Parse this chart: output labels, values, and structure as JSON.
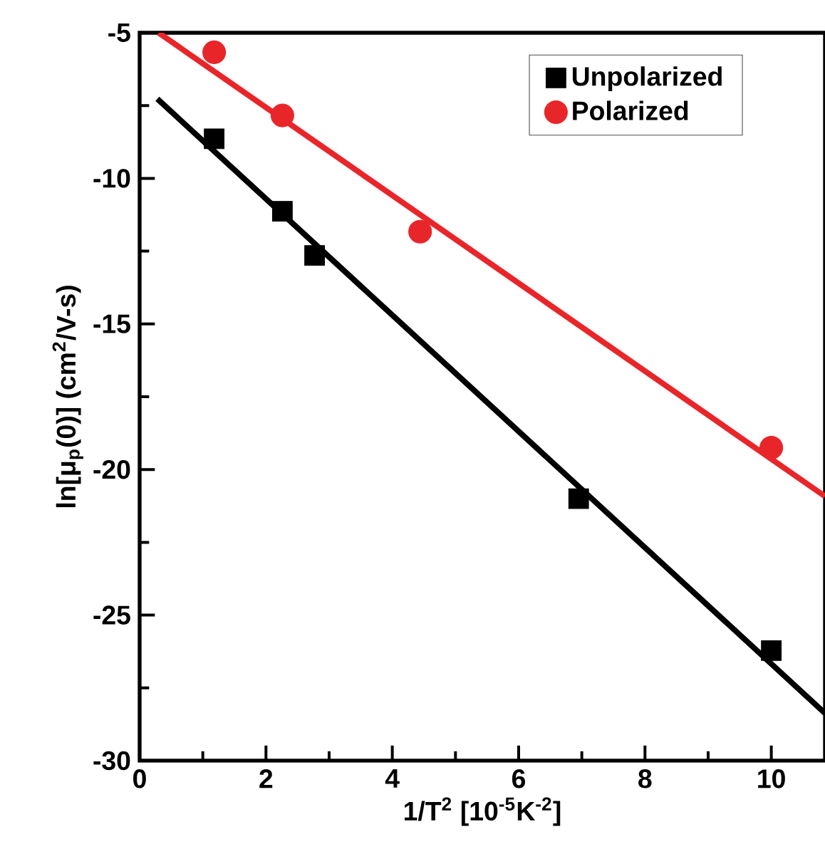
{
  "chart_data": {
    "type": "scatter",
    "xlabel": "1/T$^{2}$ [10$^{-5}$K$^{-2}$]",
    "ylabel": "ln[μ$_{p}$(0)] (cm$^{2}$/V-s)",
    "xlim": [
      0,
      10.85
    ],
    "ylim": [
      -30,
      -5
    ],
    "xticks": [
      0,
      2,
      4,
      6,
      8,
      10
    ],
    "yticks": [
      -30,
      -25,
      -20,
      -15,
      -10,
      -5
    ],
    "legend": "top right",
    "grid": false,
    "series": [
      {
        "name": "Unpolarized",
        "marker": "square",
        "color": "#000000",
        "x": [
          1.18,
          2.26,
          2.77,
          6.95,
          10.0
        ],
        "values": [
          -8.64,
          -11.13,
          -12.65,
          -21.0,
          -26.22
        ]
      },
      {
        "name": "Polarized",
        "marker": "circle",
        "color": "#e8262a",
        "x": [
          1.18,
          2.26,
          4.44,
          10.0
        ],
        "values": [
          -5.67,
          -7.84,
          -11.83,
          -19.25
        ]
      },
      {
        "type": "line",
        "marker": "none",
        "line_style": "solid",
        "color": "#000000",
        "x": [
          0.28,
          10.85
        ],
        "values": [
          -7.27,
          -28.37
        ]
      },
      {
        "type": "line",
        "marker": "none",
        "line_style": "solid",
        "color": "#e8262a",
        "x": [
          0.3,
          10.85
        ],
        "values": [
          -5.0,
          -20.92
        ]
      }
    ]
  }
}
